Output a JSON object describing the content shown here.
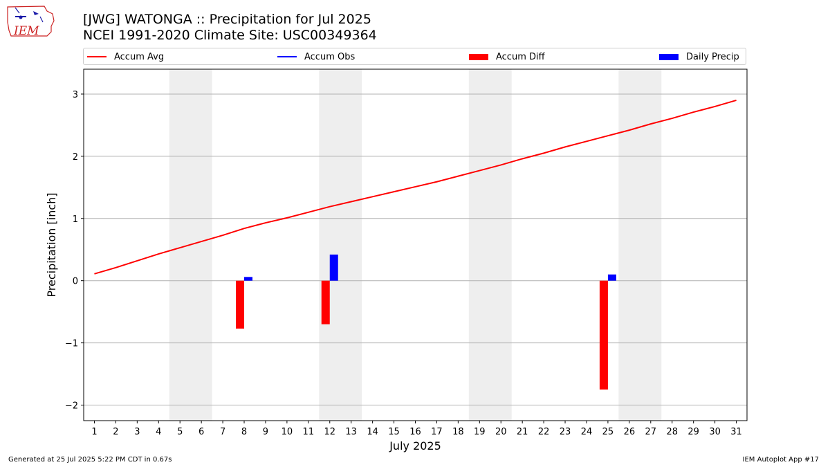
{
  "header": {
    "logo_text": "IEM",
    "title": "[JWG] WATONGA :: Precipitation for Jul 2025",
    "subtitle": "NCEI 1991-2020 Climate Site: USC00349364"
  },
  "legend": [
    {
      "label": "Accum Avg",
      "kind": "line",
      "color": "#ff0000"
    },
    {
      "label": "Accum Obs",
      "kind": "line",
      "color": "#0000ff"
    },
    {
      "label": "Accum Diff",
      "kind": "patch",
      "color": "#ff0000"
    },
    {
      "label": "Daily Precip",
      "kind": "patch",
      "color": "#0000ff"
    }
  ],
  "footer": {
    "generated": "Generated at 25 Jul 2025 5:22 PM CDT in 0.67s",
    "app": "IEM Autoplot App #17"
  },
  "chart_data": {
    "type": "bar",
    "xlabel": "July 2025",
    "ylabel": "Precipitation [inch]",
    "xlim": [
      0.5,
      31.5
    ],
    "ylim": [
      -2.25,
      3.4
    ],
    "grid": "horizontal",
    "legend_position": "top",
    "x": [
      1,
      2,
      3,
      4,
      5,
      6,
      7,
      8,
      9,
      10,
      11,
      12,
      13,
      14,
      15,
      16,
      17,
      18,
      19,
      20,
      21,
      22,
      23,
      24,
      25,
      26,
      27,
      28,
      29,
      30,
      31
    ],
    "x_tick_labels": [
      "1",
      "2",
      "3",
      "4",
      "5",
      "6",
      "7",
      "8",
      "9",
      "10",
      "11",
      "12",
      "13",
      "14",
      "15",
      "16",
      "17",
      "18",
      "19",
      "20",
      "21",
      "22",
      "23",
      "24",
      "25",
      "26",
      "27",
      "28",
      "29",
      "30",
      "31"
    ],
    "y_ticks": [
      3,
      2,
      1,
      0,
      -1,
      -2
    ],
    "y_tick_labels": [
      "3",
      "2",
      "1",
      "0",
      "−1",
      "−2"
    ],
    "weekend_bands": [
      [
        4.5,
        6.5
      ],
      [
        11.5,
        13.5
      ],
      [
        18.5,
        20.5
      ],
      [
        25.5,
        27.5
      ]
    ],
    "weekend_color": "#eeeeee",
    "series": [
      {
        "name": "Accum Avg",
        "kind": "line",
        "color": "#ff0000",
        "values": [
          0.11,
          0.21,
          0.32,
          0.43,
          0.53,
          0.63,
          0.73,
          0.84,
          0.93,
          1.01,
          1.1,
          1.19,
          1.27,
          1.35,
          1.43,
          1.51,
          1.59,
          1.68,
          1.77,
          1.86,
          1.96,
          2.05,
          2.15,
          2.24,
          2.33,
          2.42,
          2.52,
          2.61,
          2.71,
          2.8,
          2.9
        ]
      },
      {
        "name": "Accum Diff",
        "kind": "bar",
        "color": "#ff0000",
        "points": [
          {
            "x": 8,
            "value": -0.77
          },
          {
            "x": 12,
            "value": -0.7
          },
          {
            "x": 25,
            "value": -1.75
          }
        ]
      },
      {
        "name": "Daily Precip",
        "kind": "bar",
        "color": "#0000ff",
        "points": [
          {
            "x": 8,
            "value": 0.06
          },
          {
            "x": 12,
            "value": 0.42
          },
          {
            "x": 25,
            "value": 0.1
          }
        ]
      }
    ]
  }
}
